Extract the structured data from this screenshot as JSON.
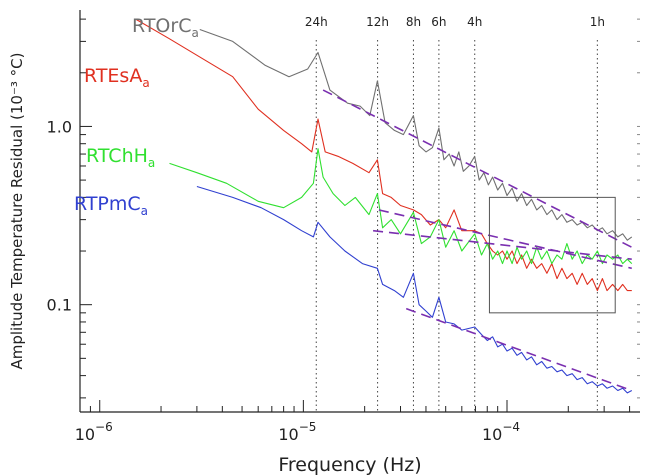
{
  "chart_data": {
    "type": "line",
    "x_scale": "log",
    "y_scale": "log",
    "xlabel": "Frequency (Hz)",
    "ylabel": "Amplitude Temperature Residual (10⁻³ °C)",
    "xlim": [
      8e-07,
      0.00045
    ],
    "ylim": [
      0.025,
      4.5
    ],
    "x_ticks": [
      {
        "value": 1e-06,
        "base": "10",
        "exp": "−6"
      },
      {
        "value": 1e-05,
        "base": "10",
        "exp": "−5"
      },
      {
        "value": 0.0001,
        "base": "10",
        "exp": "−4"
      }
    ],
    "y_ticks": [
      {
        "value": 0.1,
        "label": "0.1"
      },
      {
        "value": 1.0,
        "label": "1.0"
      }
    ],
    "period_markers": [
      {
        "label": "24h",
        "freq": 1.157e-05
      },
      {
        "label": "12h",
        "freq": 2.315e-05
      },
      {
        "label": "8h",
        "freq": 3.472e-05
      },
      {
        "label": "6h",
        "freq": 4.63e-05
      },
      {
        "label": "4h",
        "freq": 6.944e-05
      },
      {
        "label": "1h",
        "freq": 0.0002778
      }
    ],
    "inset_box": {
      "x": [
        8.2e-05,
        0.00034
      ],
      "y": [
        0.09,
        0.4
      ]
    },
    "series": [
      {
        "name": "RTOrC",
        "name_subscript": "a",
        "color": "#707070",
        "points": [
          [
            3.1e-06,
            3.5
          ],
          [
            4.5e-06,
            3.0
          ],
          [
            6.5e-06,
            2.2
          ],
          [
            8.5e-06,
            1.9
          ],
          [
            1.05e-05,
            2.1
          ],
          [
            1.18e-05,
            2.6
          ],
          [
            1.35e-05,
            1.6
          ],
          [
            1.65e-05,
            1.35
          ],
          [
            1.9e-05,
            1.3
          ],
          [
            2.12e-05,
            1.15
          ],
          [
            2.31e-05,
            1.8
          ],
          [
            2.52e-05,
            1.05
          ],
          [
            2.8e-05,
            0.95
          ],
          [
            3.1e-05,
            0.9
          ],
          [
            3.47e-05,
            1.15
          ],
          [
            3.7e-05,
            0.78
          ],
          [
            4e-05,
            0.72
          ],
          [
            4.3e-05,
            0.76
          ],
          [
            4.63e-05,
            0.98
          ],
          [
            4.9e-05,
            0.65
          ],
          [
            5.2e-05,
            0.7
          ],
          [
            5.5e-05,
            0.6
          ],
          [
            5.8e-05,
            0.72
          ],
          [
            6.1e-05,
            0.56
          ],
          [
            6.5e-05,
            0.6
          ],
          [
            6.94e-05,
            0.68
          ],
          [
            7.3e-05,
            0.5
          ],
          [
            7.7e-05,
            0.55
          ],
          [
            8.1e-05,
            0.47
          ],
          [
            8.5e-05,
            0.52
          ],
          [
            9e-05,
            0.44
          ],
          [
            9.5e-05,
            0.48
          ],
          [
            0.0001,
            0.41
          ],
          [
            0.000106,
            0.45
          ],
          [
            0.000112,
            0.38
          ],
          [
            0.000118,
            0.42
          ],
          [
            0.000125,
            0.36
          ],
          [
            0.000132,
            0.39
          ],
          [
            0.00014,
            0.34
          ],
          [
            0.000148,
            0.36
          ],
          [
            0.000157,
            0.32
          ],
          [
            0.000166,
            0.34
          ],
          [
            0.000176,
            0.3
          ],
          [
            0.000186,
            0.32
          ],
          [
            0.000197,
            0.29
          ],
          [
            0.000209,
            0.3
          ],
          [
            0.000221,
            0.28
          ],
          [
            0.000234,
            0.29
          ],
          [
            0.000248,
            0.27
          ],
          [
            0.000262,
            0.28
          ],
          [
            0.000278,
            0.26
          ],
          [
            0.000294,
            0.27
          ],
          [
            0.00031,
            0.25
          ],
          [
            0.00033,
            0.26
          ],
          [
            0.00035,
            0.24
          ],
          [
            0.00037,
            0.25
          ],
          [
            0.00039,
            0.23
          ],
          [
            0.00041,
            0.24
          ]
        ],
        "fit": [
          [
            1.25e-05,
            1.6
          ],
          [
            0.00041,
            0.21
          ]
        ]
      },
      {
        "name": "RTEsA",
        "name_subscript": "a",
        "color": "#e03020",
        "points": [
          [
            1.5e-06,
            4.0
          ],
          [
            2.2e-06,
            3.1
          ],
          [
            3.2e-06,
            2.4
          ],
          [
            4.5e-06,
            1.9
          ],
          [
            6e-06,
            1.25
          ],
          [
            8e-06,
            0.95
          ],
          [
            9.8e-06,
            0.8
          ],
          [
            1.1e-05,
            0.72
          ],
          [
            1.18e-05,
            1.1
          ],
          [
            1.28e-05,
            0.72
          ],
          [
            1.48e-05,
            0.68
          ],
          [
            1.75e-05,
            0.62
          ],
          [
            2.1e-05,
            0.55
          ],
          [
            2.31e-05,
            0.65
          ],
          [
            2.45e-05,
            0.42
          ],
          [
            2.7e-05,
            0.4
          ],
          [
            3e-05,
            0.36
          ],
          [
            3.47e-05,
            0.34
          ],
          [
            3.8e-05,
            0.32
          ],
          [
            4.2e-05,
            0.28
          ],
          [
            4.63e-05,
            0.3
          ],
          [
            5e-05,
            0.27
          ],
          [
            5.5e-05,
            0.34
          ],
          [
            6e-05,
            0.26
          ],
          [
            6.94e-05,
            0.26
          ],
          [
            7.5e-05,
            0.25
          ],
          [
            8e-05,
            0.22
          ],
          [
            8.5e-05,
            0.2
          ],
          [
            9e-05,
            0.19
          ],
          [
            9.5e-05,
            0.2
          ],
          [
            0.0001,
            0.18
          ],
          [
            0.000106,
            0.2
          ],
          [
            0.000112,
            0.17
          ],
          [
            0.000118,
            0.19
          ],
          [
            0.000125,
            0.16
          ],
          [
            0.000132,
            0.18
          ],
          [
            0.00014,
            0.16
          ],
          [
            0.000148,
            0.17
          ],
          [
            0.000157,
            0.15
          ],
          [
            0.000166,
            0.17
          ],
          [
            0.000176,
            0.14
          ],
          [
            0.000186,
            0.16
          ],
          [
            0.000197,
            0.14
          ],
          [
            0.000209,
            0.15
          ],
          [
            0.000221,
            0.13
          ],
          [
            0.000234,
            0.15
          ],
          [
            0.000248,
            0.13
          ],
          [
            0.000262,
            0.14
          ],
          [
            0.000278,
            0.12
          ],
          [
            0.000294,
            0.14
          ],
          [
            0.00031,
            0.12
          ],
          [
            0.00033,
            0.13
          ],
          [
            0.00035,
            0.12
          ],
          [
            0.00037,
            0.13
          ],
          [
            0.00039,
            0.12
          ],
          [
            0.00041,
            0.12
          ]
        ],
        "fit": [
          [
            2.35e-05,
            0.34
          ],
          [
            0.00041,
            0.16
          ]
        ]
      },
      {
        "name": "RTChH",
        "name_subscript": "a",
        "color": "#30e030",
        "points": [
          [
            2.2e-06,
            0.62
          ],
          [
            3e-06,
            0.55
          ],
          [
            4.2e-06,
            0.48
          ],
          [
            6e-06,
            0.38
          ],
          [
            8e-06,
            0.35
          ],
          [
            9.8e-06,
            0.4
          ],
          [
            1.12e-05,
            0.48
          ],
          [
            1.18e-05,
            0.75
          ],
          [
            1.25e-05,
            0.52
          ],
          [
            1.4e-05,
            0.42
          ],
          [
            1.6e-05,
            0.36
          ],
          [
            1.8e-05,
            0.4
          ],
          [
            2.1e-05,
            0.32
          ],
          [
            2.31e-05,
            0.42
          ],
          [
            2.45e-05,
            0.27
          ],
          [
            2.7e-05,
            0.3
          ],
          [
            3e-05,
            0.25
          ],
          [
            3.47e-05,
            0.33
          ],
          [
            3.8e-05,
            0.22
          ],
          [
            4.2e-05,
            0.24
          ],
          [
            4.63e-05,
            0.3
          ],
          [
            5e-05,
            0.21
          ],
          [
            5.5e-05,
            0.26
          ],
          [
            6e-05,
            0.2
          ],
          [
            6.94e-05,
            0.25
          ],
          [
            7.5e-05,
            0.19
          ],
          [
            8e-05,
            0.22
          ],
          [
            8.5e-05,
            0.18
          ],
          [
            9e-05,
            0.2
          ],
          [
            9.5e-05,
            0.17
          ],
          [
            0.0001,
            0.2
          ],
          [
            0.000106,
            0.17
          ],
          [
            0.000112,
            0.21
          ],
          [
            0.000118,
            0.18
          ],
          [
            0.000125,
            0.2
          ],
          [
            0.000132,
            0.17
          ],
          [
            0.00014,
            0.21
          ],
          [
            0.000148,
            0.18
          ],
          [
            0.000157,
            0.2
          ],
          [
            0.000166,
            0.17
          ],
          [
            0.000176,
            0.19
          ],
          [
            0.000186,
            0.18
          ],
          [
            0.000197,
            0.22
          ],
          [
            0.000209,
            0.18
          ],
          [
            0.000221,
            0.2
          ],
          [
            0.000234,
            0.17
          ],
          [
            0.000248,
            0.19
          ],
          [
            0.000262,
            0.18
          ],
          [
            0.000278,
            0.2
          ],
          [
            0.000294,
            0.17
          ],
          [
            0.00031,
            0.19
          ],
          [
            0.00033,
            0.18
          ],
          [
            0.00035,
            0.19
          ],
          [
            0.00037,
            0.17
          ],
          [
            0.00039,
            0.18
          ],
          [
            0.00041,
            0.17
          ]
        ],
        "fit": [
          [
            2.2e-05,
            0.26
          ],
          [
            0.00041,
            0.18
          ]
        ]
      },
      {
        "name": "RTPmC",
        "name_subscript": "a",
        "color": "#3040d0",
        "points": [
          [
            3e-06,
            0.46
          ],
          [
            4.5e-06,
            0.4
          ],
          [
            6.2e-06,
            0.35
          ],
          [
            8e-06,
            0.3
          ],
          [
            9.8e-06,
            0.26
          ],
          [
            1.12e-05,
            0.24
          ],
          [
            1.18e-05,
            0.29
          ],
          [
            1.35e-05,
            0.24
          ],
          [
            1.6e-05,
            0.2
          ],
          [
            1.95e-05,
            0.17
          ],
          [
            2.31e-05,
            0.16
          ],
          [
            2.45e-05,
            0.13
          ],
          [
            2.8e-05,
            0.12
          ],
          [
            3.1e-05,
            0.11
          ],
          [
            3.47e-05,
            0.15
          ],
          [
            3.7e-05,
            0.1
          ],
          [
            4e-05,
            0.092
          ],
          [
            4.3e-05,
            0.085
          ],
          [
            4.63e-05,
            0.11
          ],
          [
            5e-05,
            0.08
          ],
          [
            5.5e-05,
            0.078
          ],
          [
            6e-05,
            0.072
          ],
          [
            6.94e-05,
            0.075
          ],
          [
            7.5e-05,
            0.068
          ],
          [
            8e-05,
            0.063
          ],
          [
            8.5e-05,
            0.066
          ],
          [
            9e-05,
            0.058
          ],
          [
            9.5e-05,
            0.06
          ],
          [
            0.0001,
            0.055
          ],
          [
            0.000106,
            0.057
          ],
          [
            0.000112,
            0.052
          ],
          [
            0.000118,
            0.054
          ],
          [
            0.000125,
            0.049
          ],
          [
            0.000132,
            0.051
          ],
          [
            0.00014,
            0.046
          ],
          [
            0.000148,
            0.048
          ],
          [
            0.000157,
            0.044
          ],
          [
            0.000166,
            0.045
          ],
          [
            0.000176,
            0.042
          ],
          [
            0.000186,
            0.043
          ],
          [
            0.000197,
            0.04
          ],
          [
            0.000209,
            0.041
          ],
          [
            0.000221,
            0.038
          ],
          [
            0.000234,
            0.039
          ],
          [
            0.000248,
            0.036
          ],
          [
            0.000262,
            0.037
          ],
          [
            0.000278,
            0.035
          ],
          [
            0.000294,
            0.036
          ],
          [
            0.00031,
            0.034
          ],
          [
            0.00033,
            0.035
          ],
          [
            0.00035,
            0.033
          ],
          [
            0.00037,
            0.034
          ],
          [
            0.00039,
            0.032
          ],
          [
            0.00041,
            0.033
          ]
        ],
        "fit": [
          [
            3.2e-05,
            0.095
          ],
          [
            0.00041,
            0.033
          ]
        ]
      }
    ]
  }
}
